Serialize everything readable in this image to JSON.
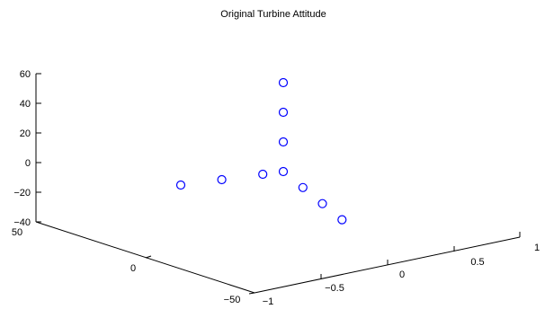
{
  "chart_data": {
    "type": "scatter",
    "title": "Original Turbine Attitude",
    "projection": "3d",
    "marker": "circle",
    "marker_color": "#0000ff",
    "z_ticks": [
      "60",
      "40",
      "20",
      "0",
      "−20",
      "−40"
    ],
    "y_ticks": [
      "50",
      "0",
      "−50"
    ],
    "x_ticks": [
      "−1",
      "−0.5",
      "0",
      "0.5",
      "1"
    ],
    "xlim": [
      -1,
      1
    ],
    "ylim": [
      -50,
      50
    ],
    "zlim": [
      -40,
      60
    ],
    "grid": false,
    "points": [
      {
        "x": 0,
        "y": 0,
        "z": 50
      },
      {
        "x": 0,
        "y": 0,
        "z": 30
      },
      {
        "x": 0,
        "y": 0,
        "z": 10
      },
      {
        "x": 0,
        "y": 0,
        "z": -10
      },
      {
        "x": 0,
        "y": 10,
        "z": -10
      },
      {
        "x": 0,
        "y": 30,
        "z": -10
      },
      {
        "x": 0,
        "y": 50,
        "z": -10
      },
      {
        "x": 0.3,
        "y": 0,
        "z": -10
      },
      {
        "x": 0.6,
        "y": 0,
        "z": -10
      },
      {
        "x": 0.9,
        "y": 0,
        "z": -10
      }
    ]
  }
}
